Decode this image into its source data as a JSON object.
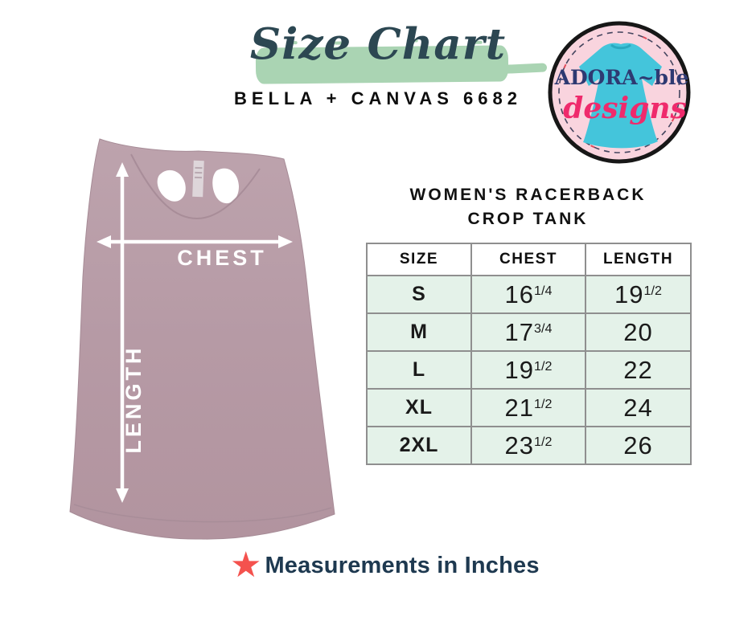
{
  "header": {
    "title": "Size Chart",
    "subtitle": "BELLA + CANVAS 6682"
  },
  "logo": {
    "brand_top": "ADORA~ble",
    "brand_bottom": "designs"
  },
  "product": {
    "heading_line1": "WOMEN'S RACERBACK",
    "heading_line2": "CROP TANK",
    "diagram_labels": {
      "chest": "CHEST",
      "length": "LENGTH"
    }
  },
  "size_table": {
    "columns": [
      "SIZE",
      "CHEST",
      "LENGTH"
    ],
    "rows": [
      {
        "size": "S",
        "chest": "16",
        "chest_frac": "1/4",
        "length": "19",
        "length_frac": "1/2"
      },
      {
        "size": "M",
        "chest": "17",
        "chest_frac": "3/4",
        "length": "20",
        "length_frac": ""
      },
      {
        "size": "L",
        "chest": "19",
        "chest_frac": "1/2",
        "length": "22",
        "length_frac": ""
      },
      {
        "size": "XL",
        "chest": "21",
        "chest_frac": "1/2",
        "length": "24",
        "length_frac": ""
      },
      {
        "size": "2XL",
        "chest": "23",
        "chest_frac": "1/2",
        "length": "26",
        "length_frac": ""
      }
    ]
  },
  "chart_data": {
    "type": "table",
    "title": "WOMEN'S RACERBACK CROP TANK — BELLA + CANVAS 6682",
    "units": "inches",
    "columns": [
      "SIZE",
      "CHEST",
      "LENGTH"
    ],
    "rows": [
      [
        "S",
        16.25,
        19.5
      ],
      [
        "M",
        17.75,
        20
      ],
      [
        "L",
        19.5,
        22
      ],
      [
        "XL",
        21.5,
        24
      ],
      [
        "2XL",
        23.5,
        26
      ]
    ]
  },
  "footer": {
    "note": "Measurements in Inches",
    "star_icon": "star"
  },
  "colors": {
    "brush_green": "#aad4b3",
    "title_ink": "#2c4752",
    "row_green": "#e4f2e9",
    "table_border": "#8f8f8f",
    "star_red": "#f4524e",
    "footer_navy": "#1e3950",
    "shirt_mauve": "#b69aa5",
    "logo_pink": "#f9d4de",
    "logo_cyan": "#44c5db",
    "logo_navy": "#2e3a72",
    "logo_magenta": "#ef2a6c"
  }
}
